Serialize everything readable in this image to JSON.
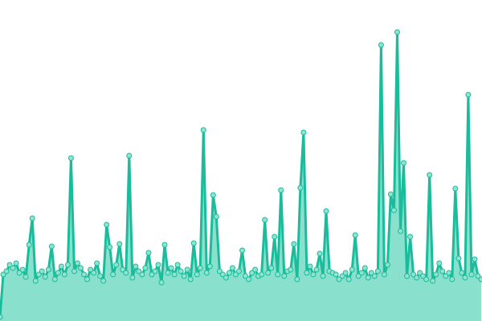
{
  "chart_data": {
    "type": "area",
    "title": "",
    "xlabel": "",
    "ylabel": "",
    "ylim": [
      0,
      400
    ],
    "grid": false,
    "axes_visible": false,
    "legend": "none",
    "colors": {
      "line": "#1abc9c",
      "fill": "#88e0cd",
      "marker_fill": "#8fe3cf",
      "marker_stroke": "#1abc9c"
    },
    "series": [
      {
        "values": [
          5,
          58,
          62,
          70,
          66,
          72,
          60,
          64,
          55,
          95,
          128,
          50,
          58,
          62,
          55,
          64,
          93,
          52,
          60,
          68,
          58,
          70,
          203,
          62,
          72,
          66,
          58,
          52,
          64,
          60,
          72,
          56,
          50,
          120,
          92,
          58,
          70,
          96,
          64,
          60,
          206,
          54,
          68,
          62,
          58,
          66,
          85,
          58,
          62,
          70,
          48,
          95,
          60,
          66,
          58,
          70,
          62,
          56,
          64,
          52,
          97,
          58,
          66,
          238,
          60,
          68,
          157,
          130,
          62,
          58,
          54,
          60,
          66,
          58,
          62,
          88,
          56,
          52,
          60,
          64,
          56,
          58,
          126,
          60,
          66,
          105,
          58,
          163,
          56,
          62,
          64,
          96,
          52,
          166,
          235,
          60,
          68,
          58,
          64,
          84,
          56,
          137,
          62,
          60,
          58,
          52,
          56,
          60,
          52,
          64,
          107,
          56,
          60,
          66,
          54,
          60,
          56,
          62,
          344,
          58,
          70,
          158,
          138,
          360,
          112,
          197,
          56,
          105,
          58,
          54,
          60,
          56,
          52,
          182,
          50,
          58,
          72,
          62,
          56,
          60,
          52,
          165,
          78,
          60,
          54,
          282,
          58,
          77,
          56,
          52
        ]
      }
    ]
  }
}
